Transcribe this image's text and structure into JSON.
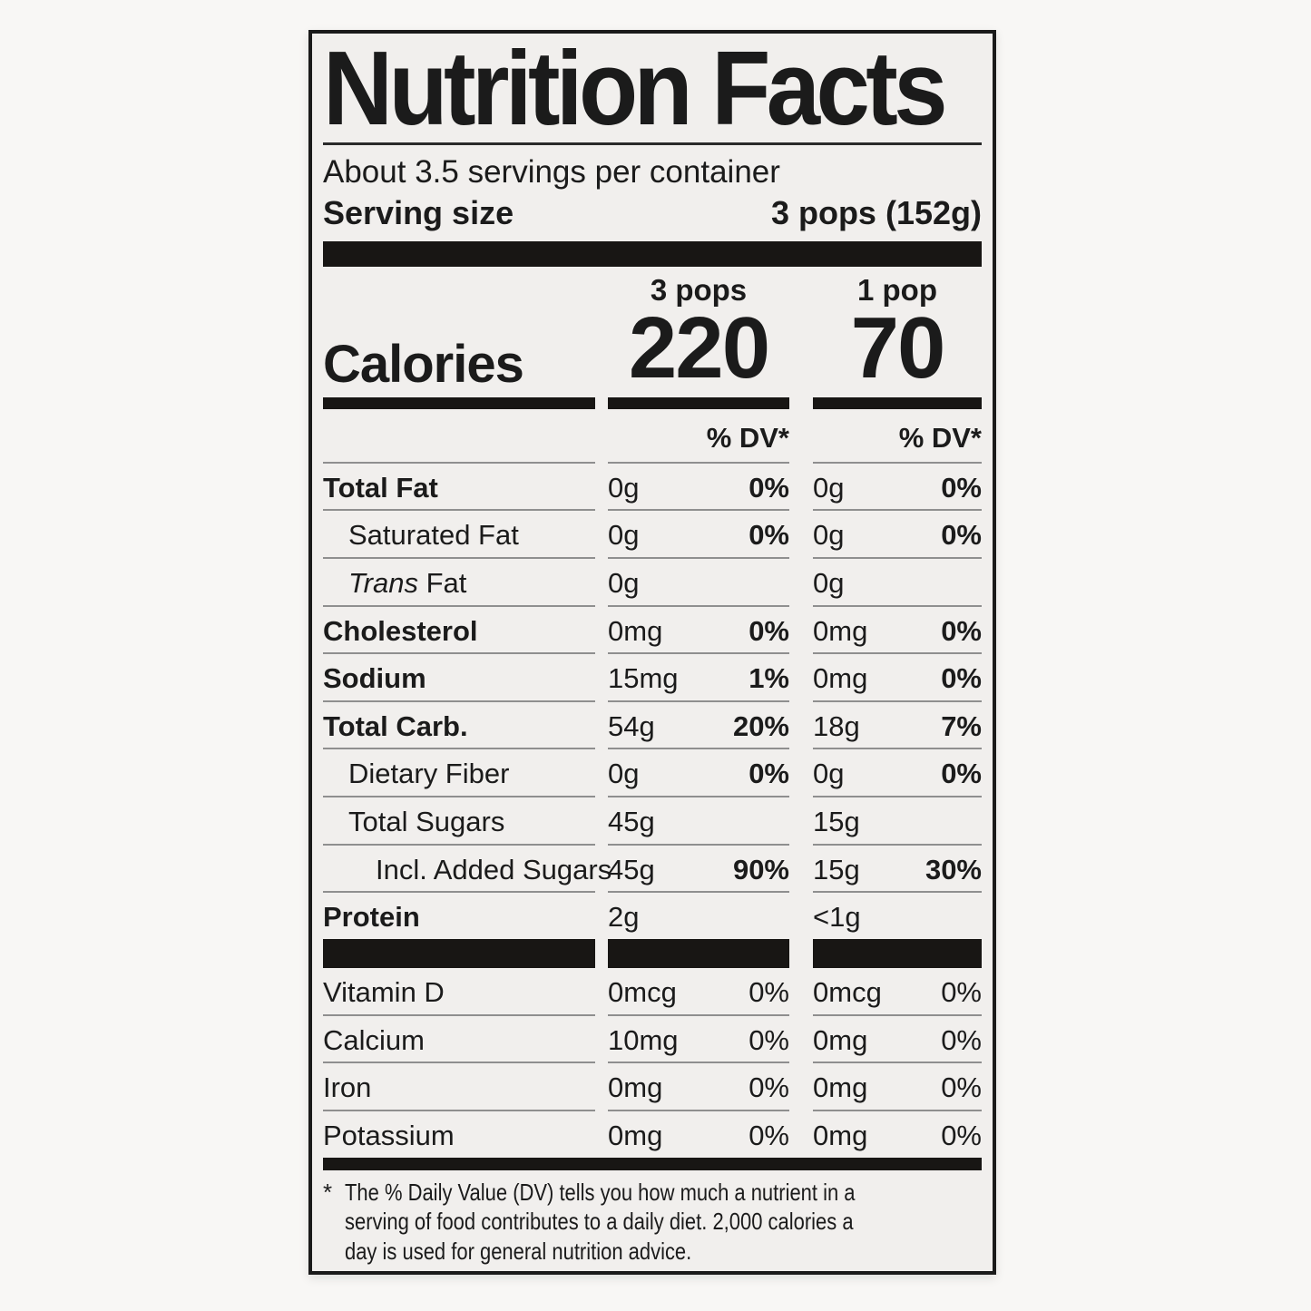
{
  "label": {
    "title": "Nutrition Facts",
    "servings_line": "About 3.5 servings per container",
    "serving_size": {
      "label": "Serving size",
      "value": "3 pops (152g)"
    },
    "column_headers": [
      "3 pops",
      "1 pop"
    ],
    "calories": {
      "label": "Calories",
      "values": [
        "220",
        "70"
      ]
    },
    "dv_header": "% DV*",
    "nutrient_rows": [
      {
        "name": "Total Fat",
        "bold": true,
        "indent": 0,
        "amount1": "0g",
        "dv1": "0%",
        "amount2": "0g",
        "dv2": "0%"
      },
      {
        "name": "Saturated Fat",
        "bold": false,
        "indent": 1,
        "amount1": "0g",
        "dv1": "0%",
        "amount2": "0g",
        "dv2": "0%"
      },
      {
        "name": "Fat",
        "italic_prefix": "Trans",
        "bold": false,
        "indent": 1,
        "amount1": "0g",
        "dv1": "",
        "amount2": "0g",
        "dv2": ""
      },
      {
        "name": "Cholesterol",
        "bold": true,
        "indent": 0,
        "amount1": "0mg",
        "dv1": "0%",
        "amount2": "0mg",
        "dv2": "0%"
      },
      {
        "name": "Sodium",
        "bold": true,
        "indent": 0,
        "amount1": "15mg",
        "dv1": "1%",
        "amount2": "0mg",
        "dv2": "0%"
      },
      {
        "name": "Total Carb.",
        "bold": true,
        "indent": 0,
        "amount1": "54g",
        "dv1": "20%",
        "amount2": "18g",
        "dv2": "7%"
      },
      {
        "name": "Dietary Fiber",
        "bold": false,
        "indent": 1,
        "amount1": "0g",
        "dv1": "0%",
        "amount2": "0g",
        "dv2": "0%"
      },
      {
        "name": "Total Sugars",
        "bold": false,
        "indent": 1,
        "amount1": "45g",
        "dv1": "",
        "amount2": "15g",
        "dv2": ""
      },
      {
        "name": "Incl. Added Sugars",
        "bold": false,
        "indent": 2,
        "amount1": "45g",
        "dv1": "90%",
        "amount2": "15g",
        "dv2": "30%"
      },
      {
        "name": "Protein",
        "bold": true,
        "indent": 0,
        "amount1": "2g",
        "dv1": "",
        "amount2": "<1g",
        "dv2": ""
      }
    ],
    "micro_rows": [
      {
        "name": "Vitamin D",
        "amount1": "0mcg",
        "dv1": "0%",
        "amount2": "0mcg",
        "dv2": "0%"
      },
      {
        "name": "Calcium",
        "amount1": "10mg",
        "dv1": "0%",
        "amount2": "0mg",
        "dv2": "0%"
      },
      {
        "name": "Iron",
        "amount1": "0mg",
        "dv1": "0%",
        "amount2": "0mg",
        "dv2": "0%"
      },
      {
        "name": "Potassium",
        "amount1": "0mg",
        "dv1": "0%",
        "amount2": "0mg",
        "dv2": "0%"
      }
    ],
    "footnote_marker": "*",
    "footnote": "The % Daily Value (DV) tells you how much a nutrient in a serving of food contributes to a daily diet. 2,000 calories a day is used for general nutrition advice.",
    "colors": {
      "bar": "#181614",
      "separator": "#8f8f8f",
      "label_bg": "#f1efed"
    }
  }
}
